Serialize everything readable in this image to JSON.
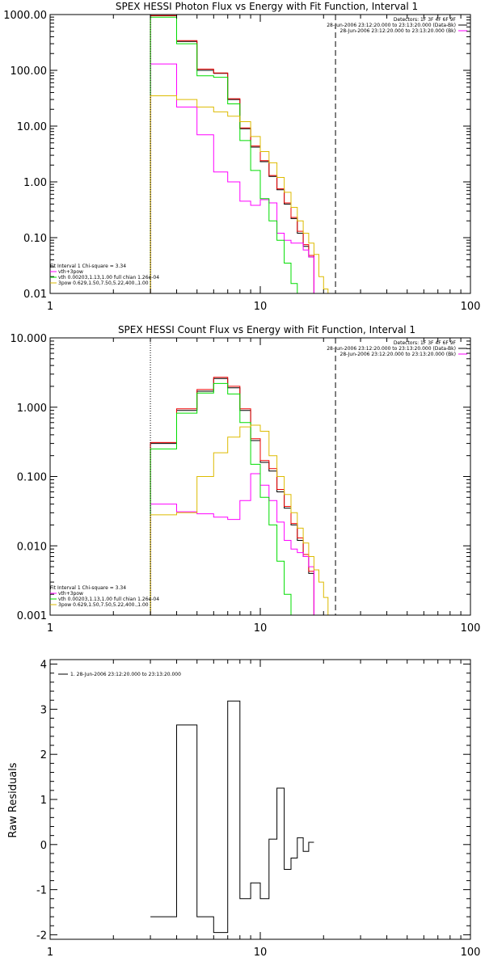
{
  "chart_data": [
    {
      "type": "line",
      "title": "SPEX HESSI Photon Flux vs Energy with Fit Function, Interval 1",
      "xlabel": "",
      "ylabel": "",
      "xscale": "log",
      "yscale": "log",
      "xlim": [
        1,
        100
      ],
      "ylim": [
        0.01,
        1000
      ],
      "xticks": [
        1,
        10,
        100
      ],
      "xtick_labels": [
        "1",
        "10",
        "100"
      ],
      "yticks": [
        0.01,
        0.1,
        1,
        10,
        100,
        1000
      ],
      "ytick_labels": [
        "0.01",
        "0.10",
        "1.00",
        "10.00",
        "100.00",
        "1000.00"
      ],
      "energy_edges": [
        3,
        4,
        5,
        6,
        7,
        8,
        9,
        10,
        11,
        12,
        13,
        14,
        15,
        16,
        17,
        18,
        19,
        20,
        21,
        22,
        23,
        24,
        25,
        26,
        27,
        28,
        29,
        30
      ],
      "info_lines": [
        "Detectors: 1F 3F 4F 6F 9F",
        "28-Jun-2006 23:12:20.000 to 23:13:20.000 (Data-Bk)",
        "28-Jun-2006 23:12:20.000 to 23:13:20.000 (Bk)"
      ],
      "legend": [
        "Fit Interval 1    Chi-square = 3.34",
        "vth+3pow",
        "vth 0.00203,1.13,1.00  full chian 1.26e-04",
        "3pow 0.629,1.50,7.50,5.22,400.,1.00"
      ],
      "vlines": [
        {
          "x": 3,
          "style": "dotted"
        },
        {
          "x": 22.8,
          "style": "dashed"
        }
      ],
      "series": [
        {
          "name": "",
          "color": "#000000",
          "values": [
            950,
            330,
            100,
            88,
            30,
            9,
            4.2,
            2.3,
            1.25,
            0.72,
            0.4,
            0.22,
            0.12,
            0.07,
            0.045,
            null,
            null,
            null,
            null,
            null,
            null,
            null,
            null,
            null,
            null,
            null,
            null
          ]
        },
        {
          "name": "",
          "color": "#ee0000",
          "values": [
            960,
            340,
            105,
            90,
            31,
            9.3,
            4.4,
            2.4,
            1.3,
            0.75,
            0.42,
            0.23,
            0.13,
            0.075,
            0.048,
            null,
            null,
            null,
            null,
            null,
            null,
            null,
            null,
            null,
            null,
            null,
            null
          ]
        },
        {
          "name": "vth+3pow",
          "color": "#ff00ff",
          "values": [
            130,
            22,
            7,
            1.5,
            1.0,
            0.45,
            0.38,
            0.48,
            0.42,
            0.12,
            0.09,
            0.08,
            0.08,
            0.06,
            0.045,
            null,
            null,
            null,
            null,
            null,
            null,
            null,
            null,
            null,
            null,
            null,
            null
          ]
        },
        {
          "name": "vth 0.00203,1.13,1.00  full chian 1.26e-04",
          "color": "#00dd00",
          "values": [
            900,
            300,
            80,
            75,
            25,
            5.5,
            1.6,
            0.5,
            0.2,
            0.09,
            0.035,
            0.015,
            null,
            null,
            null,
            null,
            null,
            null,
            null,
            null,
            null,
            null,
            null,
            null,
            null,
            null,
            null
          ]
        },
        {
          "name": "3pow 0.629,1.50,7.50,5.22,400.,1.00",
          "color": "#ddbb00",
          "values": [
            35,
            30,
            22,
            18,
            15,
            12,
            6.5,
            3.5,
            2.2,
            1.2,
            0.65,
            0.35,
            0.2,
            0.12,
            0.08,
            0.05,
            0.02,
            0.012,
            null,
            null,
            null,
            null,
            null,
            null,
            null,
            null,
            null
          ]
        }
      ]
    },
    {
      "type": "line",
      "title": "SPEX HESSI Count Flux vs Energy with Fit Function, Interval 1",
      "xlabel": "",
      "ylabel": "",
      "xscale": "log",
      "yscale": "log",
      "xlim": [
        1,
        100
      ],
      "ylim": [
        0.001,
        10
      ],
      "xticks": [
        1,
        10,
        100
      ],
      "xtick_labels": [
        "1",
        "10",
        "100"
      ],
      "yticks": [
        0.001,
        0.01,
        0.1,
        1,
        10
      ],
      "ytick_labels": [
        "0.001",
        "0.010",
        "0.100",
        "1.000",
        "10.000"
      ],
      "energy_edges": [
        3,
        4,
        5,
        6,
        7,
        8,
        9,
        10,
        11,
        12,
        13,
        14,
        15,
        16,
        17,
        18,
        19,
        20,
        21,
        22,
        23,
        24,
        25,
        26,
        27,
        28,
        29,
        30
      ],
      "info_lines": [
        "Detectors: 1F 3F 4F 6F 9F",
        "28-Jun-2006 23:12:20.000 to 23:13:20.000 (Data-Bk)",
        "28-Jun-2006 23:12:20.000 to 23:13:20.000 (Bk)"
      ],
      "legend": [
        "Fit Interval 1    Chi-square = 3.34",
        "vth+3pow",
        "vth 0.00203,1.13,1.00  full chian 1.26e-04",
        "3pow 0.629,1.50,7.50,5.22,400.,1.00"
      ],
      "vlines": [
        {
          "x": 3,
          "style": "dotted"
        },
        {
          "x": 22.8,
          "style": "dashed"
        }
      ],
      "series": [
        {
          "name": "",
          "color": "#000000",
          "values": [
            0.3,
            0.9,
            1.7,
            2.6,
            1.9,
            0.9,
            0.33,
            0.16,
            0.12,
            0.06,
            0.035,
            0.02,
            0.012,
            0.007,
            0.004,
            null,
            null,
            null,
            null,
            null,
            null,
            null,
            null,
            null,
            null,
            null,
            null
          ]
        },
        {
          "name": "",
          "color": "#ee0000",
          "values": [
            0.31,
            0.95,
            1.8,
            2.7,
            2.0,
            0.95,
            0.35,
            0.17,
            0.13,
            0.065,
            0.037,
            0.021,
            0.013,
            0.0075,
            0.0043,
            null,
            null,
            null,
            null,
            null,
            null,
            null,
            null,
            null,
            null,
            null,
            null
          ]
        },
        {
          "name": "vth+3pow",
          "color": "#ff00ff",
          "values": [
            0.04,
            0.031,
            0.029,
            0.026,
            0.024,
            0.045,
            0.11,
            0.075,
            0.045,
            0.022,
            0.012,
            0.009,
            0.008,
            0.007,
            0.005,
            null,
            null,
            null,
            null,
            null,
            null,
            null,
            null,
            null,
            null,
            null,
            null
          ]
        },
        {
          "name": "vth 0.00203,1.13,1.00  full chian 1.26e-04",
          "color": "#00dd00",
          "values": [
            0.25,
            0.82,
            1.6,
            2.2,
            1.55,
            0.6,
            0.15,
            0.05,
            0.02,
            0.006,
            0.002,
            0.001,
            null,
            null,
            null,
            null,
            null,
            null,
            null,
            null,
            null,
            null,
            null,
            null,
            null,
            null,
            null
          ]
        },
        {
          "name": "3pow 0.629,1.50,7.50,5.22,400.,1.00",
          "color": "#ddbb00",
          "values": [
            0.028,
            0.03,
            0.1,
            0.22,
            0.37,
            0.52,
            0.55,
            0.45,
            0.2,
            0.1,
            0.055,
            0.03,
            0.018,
            0.011,
            0.007,
            0.0045,
            0.003,
            0.0018,
            0.001,
            null,
            null,
            null,
            null,
            null,
            null,
            null,
            null
          ]
        }
      ]
    },
    {
      "type": "line",
      "title": "",
      "xlabel": "",
      "ylabel": "Raw Residuals",
      "xscale": "log",
      "yscale": "linear",
      "xlim": [
        1,
        100
      ],
      "ylim": [
        -2.1,
        4.1
      ],
      "xticks": [
        1,
        10,
        100
      ],
      "xtick_labels": [
        "1",
        "10",
        "100"
      ],
      "yticks": [
        -2,
        -1,
        0,
        1,
        2,
        3,
        4
      ],
      "ytick_labels": [
        "-2",
        "-1",
        "0",
        "1",
        "2",
        "3",
        "4"
      ],
      "energy_edges": [
        3,
        4,
        5,
        6,
        7,
        8,
        9,
        10,
        11,
        12,
        13,
        14,
        15,
        16,
        17,
        18,
        19,
        20,
        21,
        22,
        23,
        24,
        25,
        26,
        27,
        28,
        29,
        30
      ],
      "legend": [
        "1. 28-Jun-2006 23:12:20.000 to 23:13:20.000"
      ],
      "series": [
        {
          "name": "1. 28-Jun-2006 23:12:20.000 to 23:13:20.000",
          "color": "#000000",
          "values": [
            -1.6,
            2.65,
            -1.6,
            -1.95,
            3.18,
            -1.2,
            -0.85,
            -1.2,
            0.12,
            1.25,
            -0.55,
            -0.3,
            0.15,
            -0.15,
            0.05,
            null,
            null,
            null,
            null,
            null,
            null,
            null,
            null,
            null,
            null,
            null,
            null
          ]
        }
      ]
    }
  ]
}
